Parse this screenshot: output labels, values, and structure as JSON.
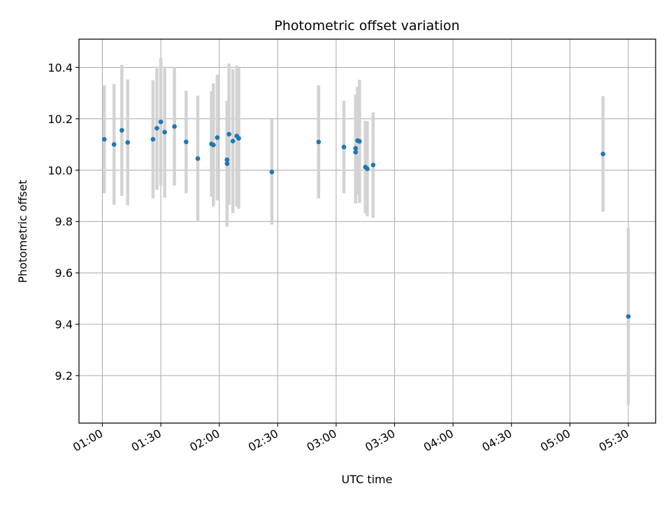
{
  "chart_data": {
    "type": "scatter",
    "title": "Photometric offset variation",
    "xlabel": "UTC time",
    "ylabel": "Photometric offset",
    "x_axis_kind": "time",
    "xlim": [
      "00:48",
      "05:44"
    ],
    "ylim": [
      9.015,
      10.51
    ],
    "x_ticks": [
      "01:00",
      "01:30",
      "02:00",
      "02:30",
      "03:00",
      "03:30",
      "04:00",
      "04:30",
      "05:00",
      "05:30"
    ],
    "y_ticks": [
      9.2,
      9.4,
      9.6,
      9.8,
      10.0,
      10.2,
      10.4
    ],
    "grid": true,
    "legend": "none",
    "colors": {
      "points": "#1f77b4",
      "error_bars": "#d3d3d3",
      "grid": "#b0b0b0"
    },
    "series": [
      {
        "points": [
          {
            "x": "01:01",
            "y": 10.12,
            "err": 0.21
          },
          {
            "x": "01:06",
            "y": 10.1,
            "err": 0.235
          },
          {
            "x": "01:10",
            "y": 10.155,
            "err": 0.255
          },
          {
            "x": "01:13",
            "y": 10.108,
            "err": 0.245
          },
          {
            "x": "01:26",
            "y": 10.12,
            "err": 0.23
          },
          {
            "x": "01:28",
            "y": 10.163,
            "err": 0.24
          },
          {
            "x": "01:30",
            "y": 10.188,
            "err": 0.25
          },
          {
            "x": "01:32",
            "y": 10.148,
            "err": 0.255
          },
          {
            "x": "01:37",
            "y": 10.17,
            "err": 0.23
          },
          {
            "x": "01:43",
            "y": 10.11,
            "err": 0.2
          },
          {
            "x": "01:49",
            "y": 10.045,
            "err": 0.245
          },
          {
            "x": "01:56",
            "y": 10.102,
            "err": 0.205
          },
          {
            "x": "01:57",
            "y": 10.098,
            "err": 0.24
          },
          {
            "x": "01:59",
            "y": 10.127,
            "err": 0.245
          },
          {
            "x": "02:04",
            "y": 10.04,
            "err": 0.23
          },
          {
            "x": "02:04",
            "y": 10.025,
            "err": 0.245
          },
          {
            "x": "02:05",
            "y": 10.14,
            "err": 0.275
          },
          {
            "x": "02:07",
            "y": 10.113,
            "err": 0.28
          },
          {
            "x": "02:09",
            "y": 10.133,
            "err": 0.275
          },
          {
            "x": "02:10",
            "y": 10.124,
            "err": 0.275
          },
          {
            "x": "02:27",
            "y": 9.993,
            "err": 0.205
          },
          {
            "x": "02:51",
            "y": 10.11,
            "err": 0.22
          },
          {
            "x": "03:04",
            "y": 10.09,
            "err": 0.18
          },
          {
            "x": "03:10",
            "y": 10.085,
            "err": 0.21
          },
          {
            "x": "03:10",
            "y": 10.07,
            "err": 0.2
          },
          {
            "x": "03:11",
            "y": 10.115,
            "err": 0.21
          },
          {
            "x": "03:12",
            "y": 10.112,
            "err": 0.24
          },
          {
            "x": "03:15",
            "y": 10.012,
            "err": 0.18
          },
          {
            "x": "03:16",
            "y": 10.005,
            "err": 0.185
          },
          {
            "x": "03:19",
            "y": 10.02,
            "err": 0.205
          },
          {
            "x": "05:17",
            "y": 10.063,
            "err": 0.225
          },
          {
            "x": "05:30",
            "y": 9.43,
            "err": 0.345
          }
        ]
      }
    ]
  }
}
